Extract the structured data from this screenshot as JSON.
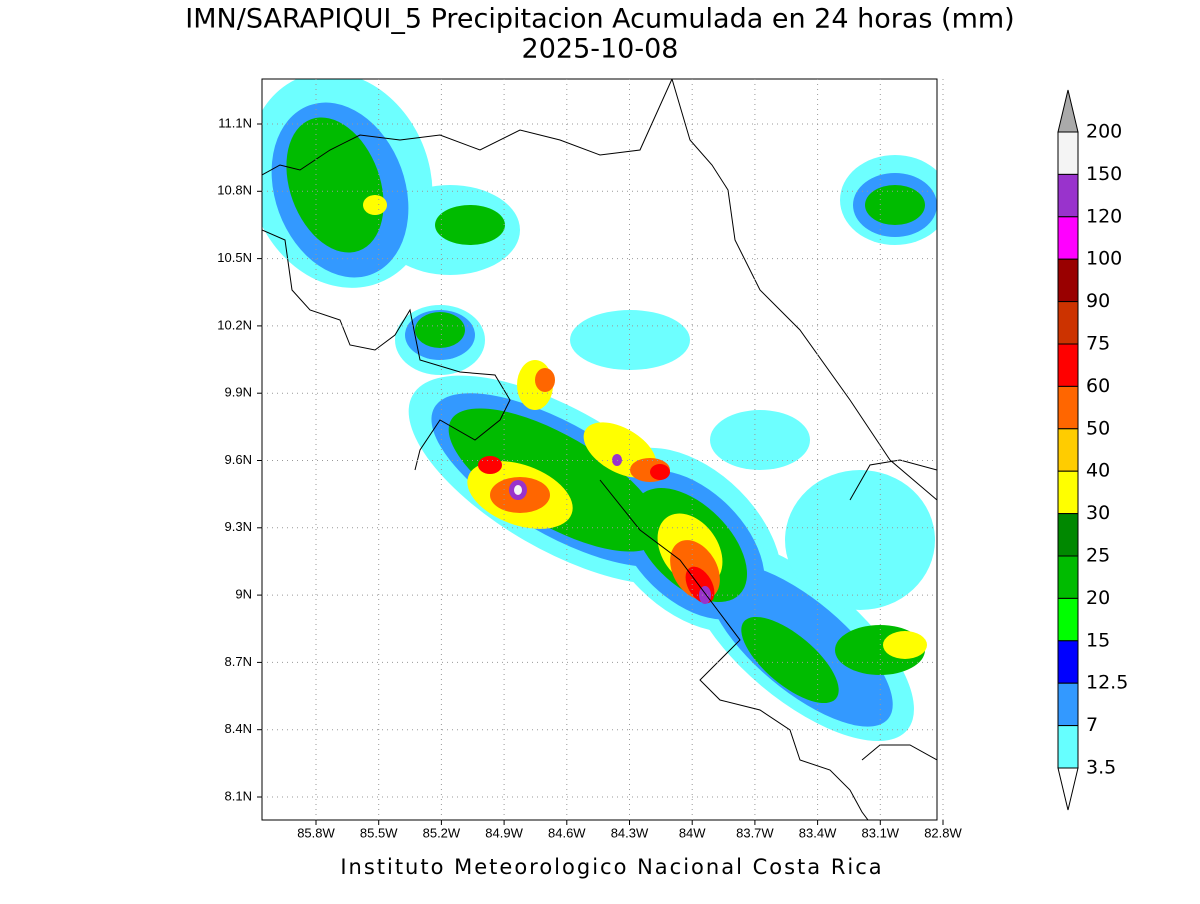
{
  "title": "IMN/SARAPIQUI_5 Precipitacion Acumulada en 24 horas (mm)",
  "subtitle": "2025-10-08",
  "x_ticks": [
    "85.8W",
    "85.5W",
    "85.2W",
    "84.9W",
    "84.6W",
    "84.3W",
    "84W",
    "83.7W",
    "83.4W",
    "83.1W",
    "82.8W"
  ],
  "y_ticks": [
    "11.1N",
    "10.8N",
    "10.5N",
    "10.2N",
    "9.9N",
    "9.6N",
    "9.3N",
    "9N",
    "8.7N",
    "8.4N",
    "8.1N"
  ],
  "colorbar": {
    "labels": [
      "200",
      "150",
      "120",
      "100",
      "90",
      "75",
      "60",
      "50",
      "40",
      "30",
      "25",
      "20",
      "15",
      "12.5",
      "7",
      "3.5"
    ],
    "colors": [
      "#f4f4f4",
      "#9933cc",
      "#ff00ff",
      "#990000",
      "#cc3300",
      "#ff0000",
      "#ff6600",
      "#ffcc00",
      "#ffff00",
      "#008800",
      "#00bb00",
      "#00ff00",
      "#0000ff",
      "#3399ff",
      "#66ffff"
    ],
    "over_color": "#aaaaaa",
    "under_color": "#ffffff"
  },
  "footer": "Instituto Meteorologico Nacional Costa Rica"
}
